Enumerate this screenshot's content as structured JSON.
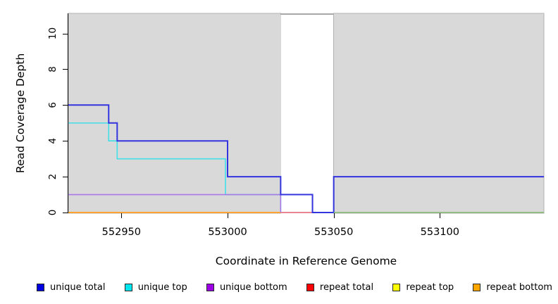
{
  "chart_data": {
    "type": "line",
    "step": true,
    "title": "",
    "xlabel": "Coordinate in Reference Genome",
    "ylabel": "Read Coverage Depth",
    "xlim": [
      552925,
      553149
    ],
    "ylim": [
      0,
      11.1
    ],
    "x_ticks": [
      552950,
      553000,
      553050,
      553100
    ],
    "x_tick_labels": [
      "552950",
      "553000",
      "553050",
      "553100"
    ],
    "y_ticks": [
      0,
      2,
      4,
      6,
      8,
      10
    ],
    "y_tick_labels": [
      "0",
      "2",
      "4",
      "6",
      "8",
      "10"
    ],
    "grid": false,
    "legend_position": "bottom",
    "background_regions": [
      {
        "name": "shaded-region-left",
        "from": 552925,
        "to": 553025,
        "fill": "#d9d9d9",
        "border": "#b2b2b2"
      },
      {
        "name": "gap-region",
        "from": 553025,
        "to": 553050,
        "fill": "#ffffff",
        "top_border": "#8a8a8a"
      },
      {
        "name": "shaded-region-right",
        "from": 553050,
        "to": 553149,
        "fill": "#d9d9d9",
        "border": "#b2b2b2"
      }
    ],
    "series": [
      {
        "name": "repeat total",
        "legend_color": "#ff0000",
        "line_color": "#e25b72",
        "in_legend": true,
        "width": 1.6,
        "points": [
          [
            552925,
            0
          ],
          [
            553149,
            0
          ]
        ]
      },
      {
        "name": "repeat top",
        "legend_color": "#ffff00",
        "line_color": "#ffff00",
        "in_legend": true,
        "width": 1.6,
        "points": [
          [
            552925,
            0
          ],
          [
            553025,
            0
          ]
        ]
      },
      {
        "name": "repeat bottom",
        "legend_color": "#ffa500",
        "line_color": "#ff9e2e",
        "in_legend": true,
        "width": 1.8,
        "points": [
          [
            552925,
            0
          ],
          [
            553025,
            0
          ]
        ]
      },
      {
        "name": "unique top",
        "legend_color": "#00e5ee",
        "line_color": "#42dfe8",
        "in_legend": true,
        "width": 1.6,
        "points": [
          [
            552925,
            5
          ],
          [
            552944,
            4
          ],
          [
            552948,
            3
          ],
          [
            552999,
            1
          ],
          [
            553025,
            0
          ]
        ]
      },
      {
        "name": "unique bottom",
        "legend_color": "#9c00e4",
        "line_color": "#ab79e6",
        "in_legend": true,
        "width": 1.6,
        "points": [
          [
            552925,
            1
          ],
          [
            553025,
            0
          ]
        ]
      },
      {
        "name": "unique total",
        "legend_color": "#0000e1",
        "line_color": "#3434df",
        "in_legend": true,
        "width": 2.0,
        "points": [
          [
            552925,
            6
          ],
          [
            552944,
            5
          ],
          [
            552948,
            4
          ],
          [
            553000,
            2
          ],
          [
            553025,
            1
          ],
          [
            553040,
            0
          ],
          [
            553050,
            2
          ],
          [
            553149,
            2
          ]
        ]
      },
      {
        "name": "baseline right",
        "legend_color": "#7ccb7c",
        "line_color": "#7ccb7c",
        "in_legend": false,
        "width": 1.6,
        "points": [
          [
            553050,
            0
          ],
          [
            553149,
            0
          ]
        ]
      }
    ]
  },
  "legend": {
    "items": [
      {
        "label": "unique total",
        "color": "#0000e1"
      },
      {
        "label": "unique top",
        "color": "#00e5ee"
      },
      {
        "label": "unique bottom",
        "color": "#9c00e4"
      },
      {
        "label": "repeat total",
        "color": "#ff0000"
      },
      {
        "label": "repeat top",
        "color": "#ffff00"
      },
      {
        "label": "repeat bottom",
        "color": "#ffa500"
      }
    ]
  }
}
